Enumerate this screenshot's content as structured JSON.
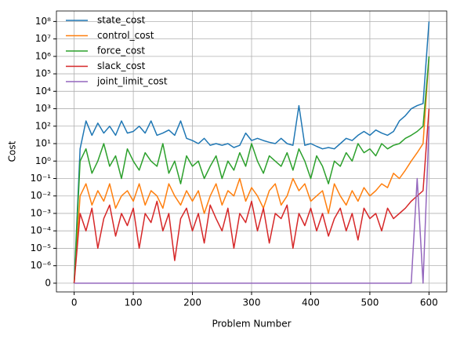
{
  "chart_data": {
    "type": "line",
    "x_label": "Problem Number",
    "y_label": "Cost",
    "x": [
      0,
      10,
      20,
      30,
      40,
      50,
      60,
      70,
      80,
      90,
      100,
      110,
      120,
      130,
      140,
      150,
      160,
      170,
      180,
      190,
      200,
      210,
      220,
      230,
      240,
      250,
      260,
      270,
      280,
      290,
      300,
      310,
      320,
      330,
      340,
      350,
      360,
      370,
      380,
      390,
      400,
      410,
      420,
      430,
      440,
      450,
      460,
      470,
      480,
      490,
      500,
      510,
      520,
      530,
      540,
      550,
      560,
      570,
      580,
      590,
      600
    ],
    "series": [
      {
        "name": "state_cost",
        "color": "#1f77b4",
        "values": [
          0,
          5,
          200,
          30,
          150,
          40,
          100,
          30,
          200,
          40,
          50,
          100,
          40,
          200,
          30,
          40,
          60,
          30,
          200,
          20,
          15,
          10,
          20,
          8,
          10,
          8,
          10,
          6,
          8,
          40,
          15,
          20,
          15,
          12,
          10,
          20,
          10,
          8,
          1500,
          8,
          10,
          7,
          5,
          6,
          5,
          10,
          20,
          15,
          30,
          50,
          30,
          60,
          40,
          30,
          50,
          200,
          400,
          1000,
          1500,
          2000,
          100000000
        ]
      },
      {
        "name": "control_cost",
        "color": "#ff7f0e",
        "values": [
          0,
          0.01,
          0.05,
          0.003,
          0.02,
          0.005,
          0.05,
          0.002,
          0.01,
          0.02,
          0.005,
          0.05,
          0.003,
          0.02,
          0.01,
          0.002,
          0.05,
          0.01,
          0.003,
          0.02,
          0.005,
          0.02,
          0.001,
          0.01,
          0.05,
          0.003,
          0.02,
          0.01,
          0.1,
          0.005,
          0.03,
          0.01,
          0.002,
          0.02,
          0.05,
          0.003,
          0.01,
          0.1,
          0.02,
          0.05,
          0.005,
          0.01,
          0.02,
          0.001,
          0.05,
          0.01,
          0.003,
          0.02,
          0.005,
          0.03,
          0.01,
          0.02,
          0.05,
          0.03,
          0.2,
          0.1,
          0.3,
          1,
          3,
          10,
          1000000
        ]
      },
      {
        "name": "force_cost",
        "color": "#2ca02c",
        "values": [
          0,
          1,
          5,
          0.2,
          1,
          10,
          0.5,
          2,
          0.1,
          5,
          1,
          0.3,
          3,
          1,
          0.5,
          10,
          0.2,
          1,
          0.05,
          2,
          0.5,
          1,
          0.1,
          0.5,
          2,
          0.1,
          1,
          0.3,
          3,
          0.5,
          10,
          1,
          0.2,
          2,
          1,
          0.5,
          3,
          0.3,
          5,
          1,
          0.1,
          2,
          0.5,
          0.05,
          1,
          0.5,
          3,
          1,
          10,
          3,
          5,
          2,
          10,
          5,
          8,
          10,
          20,
          30,
          50,
          100,
          1000000
        ]
      },
      {
        "name": "slack_cost",
        "color": "#d62728",
        "values": [
          0,
          0.001,
          0.0001,
          0.002,
          1e-05,
          0.0005,
          0.003,
          5e-05,
          0.001,
          0.0002,
          0.002,
          1e-05,
          0.001,
          0.0003,
          0.005,
          0.0001,
          0.001,
          2e-06,
          0.0005,
          0.002,
          0.0001,
          0.001,
          2e-05,
          0.003,
          0.0005,
          0.0001,
          0.002,
          1e-05,
          0.001,
          0.0003,
          0.005,
          0.0001,
          0.002,
          2e-05,
          0.001,
          0.0005,
          0.003,
          1e-05,
          0.001,
          0.0002,
          0.002,
          0.0001,
          0.001,
          5e-05,
          0.0005,
          0.002,
          0.0001,
          0.001,
          3e-05,
          0.002,
          0.0005,
          0.001,
          0.0001,
          0.002,
          0.0005,
          0.001,
          0.002,
          0.005,
          0.01,
          0.02,
          1000
        ]
      },
      {
        "name": "joint_limit_cost",
        "color": "#9467bd",
        "values": [
          0,
          0,
          0,
          0,
          0,
          0,
          0,
          0,
          0,
          0,
          0,
          0,
          0,
          0,
          0,
          0,
          0,
          0,
          0,
          0,
          0,
          0,
          0,
          0,
          0,
          0,
          0,
          0,
          0,
          0,
          0,
          0,
          0,
          0,
          0,
          0,
          0,
          0,
          0,
          0,
          0,
          0,
          0,
          0,
          0,
          0,
          0,
          0,
          0,
          0,
          0,
          0,
          0,
          0,
          0,
          0,
          0,
          0,
          0.1,
          0,
          100
        ]
      }
    ],
    "xlim": [
      -30,
      630
    ],
    "xticks": [
      0,
      100,
      200,
      300,
      400,
      500,
      600
    ],
    "yscale": "symlog",
    "linthresh": 1e-06,
    "ylim": [
      -5e-07,
      400000000
    ],
    "yticks": [
      0,
      {
        "value": 1e-06,
        "label": "10⁻⁶"
      },
      {
        "value": 1e-05,
        "label": "10⁻⁵"
      },
      {
        "value": 0.0001,
        "label": "10⁻⁴"
      },
      {
        "value": 0.001,
        "label": "10⁻³"
      },
      {
        "value": 0.01,
        "label": "10⁻²"
      },
      {
        "value": 0.1,
        "label": "10⁻¹"
      },
      {
        "value": 1,
        "label": "10⁰"
      },
      {
        "value": 10,
        "label": "10¹"
      },
      {
        "value": 100,
        "label": "10²"
      },
      {
        "value": 1000,
        "label": "10³"
      },
      {
        "value": 10000,
        "label": "10⁴"
      },
      {
        "value": 100000,
        "label": "10⁵"
      },
      {
        "value": 1000000,
        "label": "10⁶"
      },
      {
        "value": 10000000,
        "label": "10⁷"
      },
      {
        "value": 100000000,
        "label": "10⁸"
      }
    ],
    "grid": true,
    "legend": "upper left"
  }
}
